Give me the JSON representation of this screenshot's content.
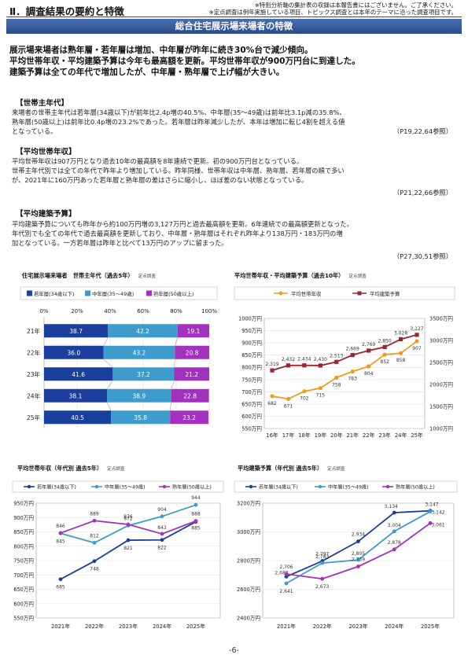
{
  "header": {
    "section_title": "Ⅱ．調査結果の要約と特徴",
    "note1": "※特別分析軸の集計表の収録は本報告書にはございません。ご了承ください。",
    "note2": "※定点調査は例年実施している項目、トピックス調査とは本年のテーマに沿った調査項目です。",
    "banner": "総合住宅展示場来場者の特徴"
  },
  "summary": [
    "展示場来場者は熟年層・若年層は増加、中年層が昨年に続き30%台で減少傾向。",
    "平均世帯年収・平均建築予算は今年も最高額を更新。平均世帯年収が900万円台に到達した。",
    "建築予算は全ての年代で増加したが、中年層・熟年層で上げ幅が大きい。"
  ],
  "sections": [
    {
      "heading": "【世帯主年代】",
      "lines": [
        "来場者の世帯主年代は若年層(34歳以下)が前年比2.4p増の40.5%、中年層(35～49歳)は前年比3.1p減の35.8%、",
        "熟年層(50歳以上)は前年比0.4p増の23.2%であった。若年層は昨年減少したが、本年は増加に転じ4割を超える値",
        "となっている。"
      ],
      "ref": "（P19,22,64参照）"
    },
    {
      "heading": "【平均世帯年収】",
      "lines": [
        "平均世帯年収は907万円となり過去10年の最高額を8年連続で更新。初の900万円台となっている。",
        "世帯主年代別では全ての年代で昨年より増加している。昨年同様、世帯年収は中年層、熟年層、若年層の順で多い",
        "が、2021年に160万円あった若年層と熟年層の差はさらに縮小し、ほぼ差のない状態となっている。"
      ],
      "ref": "（P21,22,66参照）"
    },
    {
      "heading": "【平均建築予算】",
      "lines": [
        "平均建築予算についても昨年から約100万円増の3,127万円と過去最高額を更新。6年連続での最高額更新となった。",
        "年代別でも全ての年代で過去最高額を更新しており、中年層・熟年層はそれぞれ昨年より138万円・183万円の増",
        "加となっている。一方若年層は昨年と比べて13万円のアップに留まった。"
      ],
      "ref": "（P27,30,51参照）"
    }
  ],
  "source_label": "定点調査",
  "page_number": "-6-",
  "colors": {
    "young": "#1b3f9c",
    "middle": "#3d9ccc",
    "senior": "#a331c0",
    "income": "#f39a1e",
    "budget": "#9e2332"
  },
  "chart_data": [
    {
      "type": "bar",
      "stacked": "100%",
      "orientation": "horizontal",
      "title": "住宅展示場来場者　世帯主年代（過去5年）",
      "categories": [
        "21年",
        "22年",
        "23年",
        "24年",
        "25年"
      ],
      "xticks": [
        "0%",
        "20%",
        "40%",
        "60%",
        "80%",
        "100%"
      ],
      "series": [
        {
          "name": "若年層(34歳以下)",
          "values": [
            38.7,
            36.0,
            41.6,
            38.1,
            40.5
          ]
        },
        {
          "name": "中年層(35～49歳)",
          "values": [
            42.2,
            43.2,
            37.2,
            38.9,
            35.8
          ]
        },
        {
          "name": "熟年層(50歳以上)",
          "values": [
            19.1,
            20.8,
            21.2,
            22.8,
            23.2
          ]
        }
      ],
      "legend": "top"
    },
    {
      "type": "line",
      "title": "平均世帯年収・平均建築予算（過去10年）",
      "categories": [
        "16年",
        "17年",
        "18年",
        "19年",
        "20年",
        "21年",
        "22年",
        "23年",
        "24年",
        "25年"
      ],
      "series": [
        {
          "name": "平均世帯年収",
          "axis": "left",
          "values": [
            682,
            671,
            702,
            715,
            758,
            783,
            804,
            852,
            858,
            907
          ]
        },
        {
          "name": "平均建築予算",
          "axis": "right",
          "values": [
            2319,
            2432,
            2434,
            2430,
            2513,
            2669,
            2769,
            2850,
            3028,
            3127
          ]
        }
      ],
      "ylim_left": [
        550,
        1000
      ],
      "yticks_left": [
        "550万円",
        "600万円",
        "650万円",
        "700万円",
        "750万円",
        "800万円",
        "850万円",
        "900万円",
        "950万円",
        "1000万円"
      ],
      "ylim_right": [
        1000,
        3500
      ],
      "yticks_right": [
        "1000万円",
        "1500万円",
        "2000万円",
        "2500万円",
        "3000万円",
        "3500万円"
      ],
      "legend": "top"
    },
    {
      "type": "line",
      "title": "平均世帯年収（年代別 過去5年）",
      "categories": [
        "2021年",
        "2022年",
        "2023年",
        "2024年",
        "2025年"
      ],
      "series": [
        {
          "name": "若年層(34歳以下)",
          "values": [
            685,
            748,
            821,
            822,
            885
          ]
        },
        {
          "name": "中年層(35～49歳)",
          "values": [
            845,
            812,
            872,
            904,
            944
          ]
        },
        {
          "name": "熟年層(50歳以上)",
          "values": [
            846,
            889,
            876,
            843,
            888
          ]
        }
      ],
      "ylim": [
        550,
        950
      ],
      "yticks": [
        "550万円",
        "600万円",
        "650万円",
        "700万円",
        "750万円",
        "800万円",
        "850万円",
        "900万円",
        "950万円"
      ],
      "legend": "top"
    },
    {
      "type": "line",
      "title": "平均建築予算（年代別 過去5年）",
      "categories": [
        "2021年",
        "2022年",
        "2023年",
        "2024年",
        "2025年"
      ],
      "series": [
        {
          "name": "若年層(34歳以下)",
          "values": [
            2688,
            2797,
            2934,
            3134,
            3147
          ]
        },
        {
          "name": "中年層(35～49歳)",
          "values": [
            2641,
            2783,
            2805,
            3004,
            3142
          ]
        },
        {
          "name": "熟年層(50歳以上)",
          "values": [
            2706,
            2673,
            2759,
            2878,
            3061
          ]
        }
      ],
      "ylim": [
        2400,
        3200
      ],
      "yticks": [
        "2400万円",
        "2600万円",
        "2800万円",
        "3000万円",
        "3200万円"
      ],
      "legend": "top"
    }
  ]
}
